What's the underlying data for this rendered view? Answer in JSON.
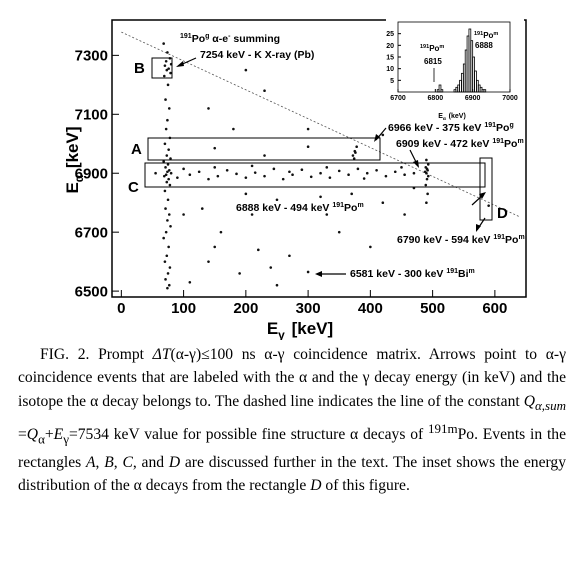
{
  "chart_data": [
    {
      "type": "scatter",
      "xlabel": [
        "E",
        "γ",
        "[keV]"
      ],
      "ylabel": [
        "E",
        "α",
        "[keV]"
      ],
      "xlim": [
        -15,
        650
      ],
      "ylim": [
        6480,
        7420
      ],
      "xticks": [
        0,
        100,
        200,
        300,
        400,
        500,
        600
      ],
      "yticks": [
        6500,
        6700,
        6900,
        7100,
        7300
      ],
      "color": "#111111",
      "x": [
        68,
        74,
        78,
        72,
        80,
        70,
        76,
        73,
        79,
        69,
        75,
        71,
        77,
        74,
        72,
        78,
        70,
        76,
        73,
        79,
        68,
        75,
        71,
        77,
        74,
        80,
        72,
        69,
        76,
        73,
        78,
        70,
        75,
        71,
        77,
        74,
        79,
        72,
        68,
        76,
        73,
        70,
        78,
        75,
        71,
        77,
        74,
        55,
        90,
        100,
        110,
        125,
        140,
        150,
        155,
        170,
        185,
        200,
        210,
        215,
        230,
        245,
        260,
        270,
        275,
        290,
        305,
        320,
        330,
        335,
        350,
        365,
        380,
        390,
        395,
        410,
        425,
        440,
        450,
        455,
        470,
        372,
        375,
        378,
        374,
        376,
        150,
        230,
        300,
        490,
        492,
        489,
        491,
        493,
        490,
        488,
        492,
        491,
        489,
        493,
        490,
        200,
        230,
        140,
        300,
        180,
        420,
        250,
        330,
        130,
        160,
        220,
        270,
        350,
        400,
        140,
        190,
        240,
        300,
        250,
        110,
        590,
        470,
        420,
        370,
        320,
        200,
        100,
        150,
        210,
        455
      ],
      "y": [
        7340,
        7310,
        7290,
        7280,
        7270,
        7265,
        7255,
        7250,
        7240,
        7230,
        7200,
        7150,
        7120,
        7080,
        7050,
        7020,
        7000,
        6980,
        6960,
        6950,
        6940,
        6930,
        6920,
        6910,
        6905,
        6900,
        6895,
        6890,
        6880,
        6870,
        6860,
        6840,
        6810,
        6780,
        6760,
        6740,
        6720,
        6700,
        6680,
        6650,
        6620,
        6600,
        6580,
        6560,
        6540,
        6520,
        6510,
        6900,
        6885,
        6915,
        6895,
        6905,
        6880,
        6920,
        6890,
        6910,
        6898,
        6885,
        6925,
        6902,
        6890,
        6915,
        6880,
        6905,
        6895,
        6912,
        6888,
        6900,
        6920,
        6885,
        6908,
        6895,
        6915,
        6882,
        6900,
        6910,
        6890,
        6905,
        6920,
        6895,
        6900,
        6960,
        6975,
        6990,
        6950,
        6970,
        6985,
        6960,
        6990,
        6800,
        6830,
        6860,
        6880,
        6890,
        6900,
        6905,
        6910,
        6915,
        6920,
        6930,
        6945,
        7250,
        7180,
        7120,
        7050,
        7050,
        7030,
        6810,
        6760,
        6780,
        6700,
        6640,
        6620,
        6700,
        6650,
        6600,
        6560,
        6580,
        6565,
        6520,
        6530,
        6790,
        6850,
        6800,
        6830,
        6820,
        6830,
        6760,
        6650,
        6760,
        6760
      ],
      "reference_line": {
        "x": [
          0,
          640
        ],
        "y": [
          7379,
          6752
        ]
      },
      "boxes": [
        "A",
        "B",
        "C",
        "D"
      ]
    },
    {
      "type": "histogram",
      "xlabel": [
        "E",
        "α",
        "(keV)"
      ],
      "xlim": [
        6700,
        7000
      ],
      "ylim": [
        0,
        30
      ],
      "xticks": [
        6700,
        6800,
        6900,
        7000
      ],
      "yticks": [
        5,
        10,
        15,
        20,
        25
      ],
      "color": "#000000",
      "bins": [
        6805,
        6810,
        6815,
        6820,
        6825,
        6830,
        6835,
        6840,
        6845,
        6850,
        6855,
        6860,
        6865,
        6870,
        6875,
        6880,
        6885,
        6890,
        6895,
        6900,
        6905,
        6910,
        6915,
        6920,
        6925,
        6930,
        6935
      ],
      "values": [
        1,
        3,
        1,
        0,
        0,
        0,
        0,
        0,
        0,
        1,
        2,
        3,
        5,
        8,
        12,
        18,
        24,
        27,
        22,
        15,
        9,
        5,
        3,
        2,
        1,
        1
      ],
      "labels": [
        [
          "191",
          "Po",
          "m"
        ],
        "6888",
        [
          "191",
          "Po",
          "m"
        ],
        "6815"
      ]
    }
  ],
  "annotations": [
    [
      "191",
      "Po",
      "g",
      " α-e",
      "-",
      " summing"
    ],
    [
      "7254 keV - K X-ray (Pb)"
    ],
    [
      "6966 keV - 375 keV  ",
      "191",
      "Po",
      "g"
    ],
    [
      "6909 keV - 472 keV  ",
      "191",
      "Po",
      "m"
    ],
    [
      "6888 keV - 494 keV  ",
      "191",
      "Po",
      "m"
    ],
    [
      "6790 keV - 594 keV  ",
      "191",
      "Po",
      "m"
    ],
    [
      "6581 keV - 300  keV  ",
      "191",
      "Bi",
      "m"
    ]
  ],
  "caption": [
    "FIG. 2. Prompt ",
    "ΔT",
    "(α-γ)≤100  ns α-γ coincidence matrix. Arrows point to α-γ coincidence events that are labeled with the α and the γ decay energy (in keV) and the isotope the α decay belongs to. The dashed line indicates the line of the constant ",
    "Q",
    "α,sum",
    " =",
    "Q",
    "α",
    "+",
    "E",
    "γ",
    "=7534  keV value for possible fine structure α decays of ",
    "191m",
    "Po. Events in the rectangles ",
    "A",
    ", ",
    "B",
    ", ",
    "C",
    ", and ",
    "D",
    " are discussed further in the text. The inset shows the energy distribution of the α decays from the rectangle ",
    "D",
    " of this figure."
  ]
}
